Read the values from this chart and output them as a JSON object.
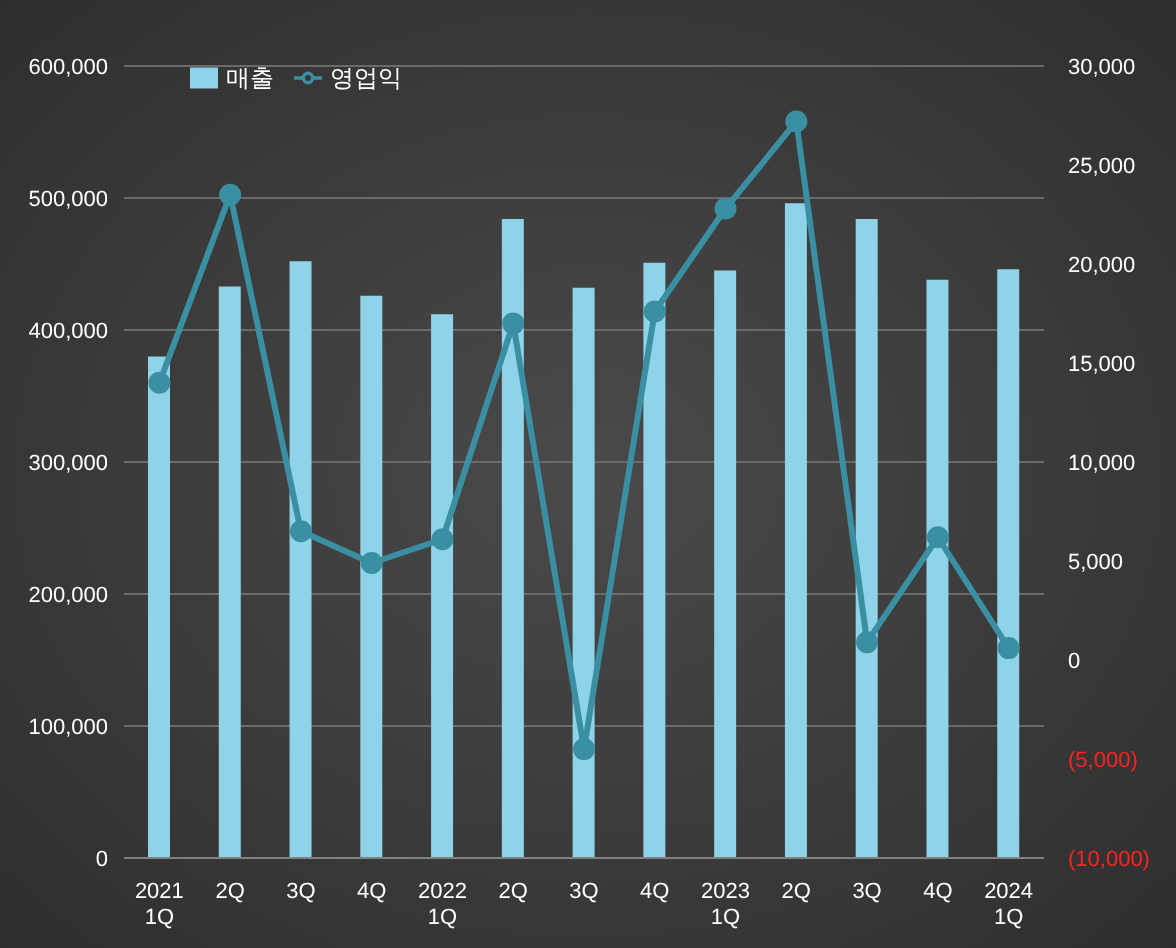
{
  "chart_data": {
    "type": "bar",
    "categories": [
      "2021\n1Q",
      "2Q",
      "3Q",
      "4Q",
      "2022\n1Q",
      "2Q",
      "3Q",
      "4Q",
      "2023\n1Q",
      "2Q",
      "3Q",
      "4Q",
      "2024\n1Q"
    ],
    "series": [
      {
        "name": "매출",
        "color": "#8fd3e8",
        "values": [
          380000,
          433000,
          452000,
          426000,
          412000,
          484000,
          432000,
          451000,
          445000,
          496000,
          484000,
          438000,
          446000
        ]
      },
      {
        "name": "영업익",
        "type": "line",
        "axis": "y2",
        "color": "#3a8fa3",
        "values": [
          14000,
          23500,
          6500,
          4900,
          6100,
          17000,
          -4500,
          17600,
          22800,
          27200,
          900,
          6200,
          600
        ]
      }
    ],
    "ylim": [
      0,
      600000
    ],
    "yticks": [
      0,
      {
        "value": 100000,
        "label": "100,000"
      },
      {
        "value": 200000,
        "label": "200,000"
      },
      {
        "value": 300000,
        "label": "300,000"
      },
      {
        "value": 400000,
        "label": "400,000"
      },
      {
        "value": 500000,
        "label": "500,000"
      },
      {
        "value": 600000,
        "label": "600,000"
      }
    ],
    "y2lim": [
      -10000,
      30000
    ],
    "y2ticks": [
      {
        "value": -10000,
        "label": "(10,000)"
      },
      {
        "value": -5000,
        "label": "(5,000)"
      },
      0,
      {
        "value": 5000,
        "label": "5,000"
      },
      {
        "value": 10000,
        "label": "10,000"
      },
      {
        "value": 15000,
        "label": "15,000"
      },
      {
        "value": 20000,
        "label": "20,000"
      },
      {
        "value": 25000,
        "label": "25,000"
      },
      {
        "value": 30000,
        "label": "30,000"
      }
    ],
    "grid": "y",
    "legend": "top left",
    "marker": "circle",
    "line_style": "solid"
  }
}
